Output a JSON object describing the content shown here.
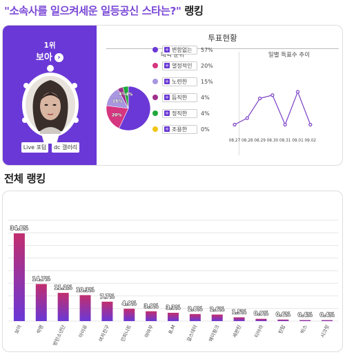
{
  "page": {
    "title_quote_open": "\"",
    "title_question": "소속사를 일으켜세운 일등공신 스타는?",
    "title_quote_close": "\"",
    "title_suffix": " 랭킹"
  },
  "top_card": {
    "rank_label": "1위",
    "name": "보아",
    "arrow_icon": "›",
    "buttons": [
      {
        "label": "Live 포텀"
      },
      {
        "label": "dc 갤러리"
      }
    ],
    "vote_status_title": "투표현황",
    "charm_title": "매력 순위",
    "daily_title": "일별 득표수 추이",
    "plus_glyph": "+"
  },
  "charm_data": {
    "type": "pie",
    "items": [
      {
        "label": "변함없는",
        "value": 57,
        "pct_label": "57%",
        "color": "#6a38d6"
      },
      {
        "label": "열정적인",
        "value": 20,
        "pct_label": "20%",
        "color": "#d6357f"
      },
      {
        "label": "노련한",
        "value": 15,
        "pct_label": "15%",
        "color": "#a896e0"
      },
      {
        "label": "듬직한",
        "value": 4,
        "pct_label": "4%",
        "color": "#9e2f8c"
      },
      {
        "label": "정직한",
        "value": 4,
        "pct_label": "4%",
        "color": "#20a83b"
      },
      {
        "label": "조용한",
        "value": 0,
        "pct_label": "0%",
        "color": "#f2c611"
      }
    ],
    "slice_labels": [
      "20%",
      "15%",
      "4%",
      "4%"
    ]
  },
  "daily_data": {
    "type": "line",
    "x": [
      "08.27",
      "08.28",
      "08.29",
      "08.30",
      "08.31",
      "09.01",
      "09.02"
    ],
    "y": [
      2,
      4,
      10,
      11,
      2,
      12,
      2
    ],
    "color": "#7a3fc6"
  },
  "section_title": "전체 랭킹",
  "chart_data": {
    "type": "bar",
    "categories": [
      "보아",
      "박명",
      "방탄소년단",
      "아이유",
      "여자친구",
      "인피니트",
      "마마무",
      "B.M",
      "걸스데이",
      "에이핑크",
      "세븐틴",
      "티아라",
      "틴탑",
      "빅스",
      "시크릿"
    ],
    "values": [
      34.8,
      14.7,
      11.2,
      10.3,
      7.7,
      4.9,
      3.9,
      3.3,
      2.8,
      2.6,
      1.5,
      0.9,
      0.6,
      0.4,
      0.4
    ],
    "value_labels": [
      "34.8%",
      "14.7%",
      "11.2%",
      "10.3%",
      "7.7%",
      "4.9%",
      "3.9%",
      "3.3%",
      "2.8%",
      "2.6%",
      "1.5%",
      "0.9%",
      "0.6%",
      "0.4%",
      "0.4%"
    ],
    "gradient_top": "#c12e6e",
    "gradient_bottom": "#6a38d6",
    "grid": true,
    "ylim": [
      0,
      40
    ]
  }
}
